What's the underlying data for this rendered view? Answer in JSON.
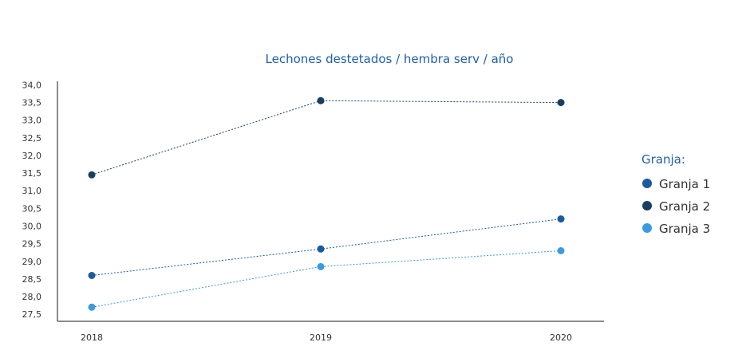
{
  "chart_data": {
    "type": "line",
    "title": "Lechones destetados / hembra serv / año",
    "xlabel": "",
    "ylabel": "",
    "categories": [
      "2018",
      "2019",
      "2020"
    ],
    "ylim": [
      27.3,
      34.1
    ],
    "y_ticks": [
      "34,0",
      "33,5",
      "33,0",
      "32,5",
      "32,0",
      "31,5",
      "31,0",
      "30,5",
      "30,0",
      "29,5",
      "29,0",
      "28,5",
      "28,0",
      "27,5"
    ],
    "grid": false,
    "legend": {
      "title": "Granja:",
      "placement": "right"
    },
    "series": [
      {
        "name": "Granja 1",
        "color": "#1a5aa0",
        "values": [
          28.6,
          29.35,
          30.2
        ]
      },
      {
        "name": "Granja 2",
        "color": "#173f62",
        "values": [
          31.45,
          33.55,
          33.5
        ]
      },
      {
        "name": "Granja 3",
        "color": "#3a9be0",
        "values": [
          27.7,
          28.85,
          29.3
        ]
      }
    ]
  }
}
